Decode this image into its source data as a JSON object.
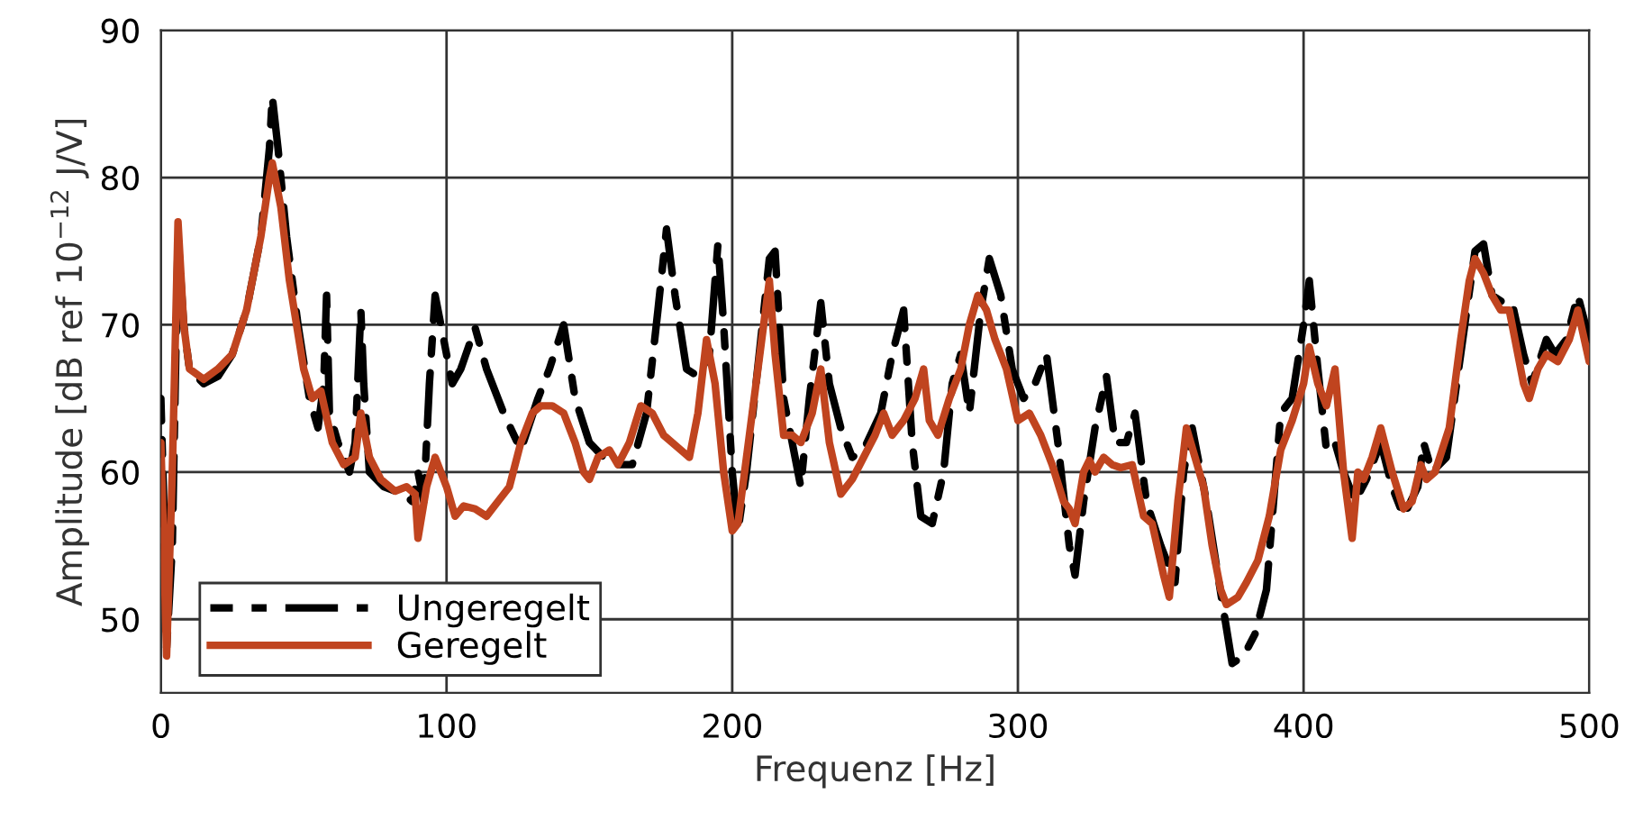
{
  "chart_data": {
    "type": "line",
    "xlabel": "Frequenz [Hz]",
    "ylabel": "Amplitude [dB ref 10$^{−12}$ J/V]",
    "xlim": [
      0,
      500
    ],
    "xticks": [
      0,
      100,
      200,
      300,
      400,
      500
    ],
    "ylim": [
      45,
      90
    ],
    "yticks": [
      50,
      60,
      70,
      80,
      90
    ],
    "grid": true,
    "legend": "bottom left",
    "marker": "none",
    "series": [
      {
        "name": "Ungeregelt",
        "color": "#000000",
        "line_style": "dashed",
        "x": [
          0,
          1,
          2,
          4,
          6,
          8,
          10,
          15,
          20,
          25,
          30,
          35,
          38,
          39,
          41,
          44,
          48,
          52,
          55,
          57,
          58,
          59,
          62,
          66,
          68,
          70,
          71,
          73,
          78,
          85,
          88,
          90,
          92,
          94,
          96,
          98,
          102,
          105,
          110,
          114,
          120,
          126,
          132,
          136,
          141,
          145,
          150,
          155,
          160,
          165,
          170,
          174,
          177,
          180,
          184,
          188,
          192,
          195,
          197,
          200,
          202,
          205,
          210,
          213,
          215,
          218,
          222,
          224,
          227,
          231,
          234,
          238,
          242,
          246,
          252,
          256,
          260,
          263,
          266,
          270,
          274,
          277,
          280,
          283,
          287,
          290,
          294,
          298,
          302,
          306,
          310,
          314,
          318,
          320,
          323,
          327,
          331,
          334,
          338,
          341,
          345,
          350,
          355,
          358,
          361,
          366,
          370,
          375,
          379,
          383,
          387,
          392,
          396,
          400,
          402,
          405,
          408,
          411,
          414,
          418,
          422,
          427,
          431,
          435,
          440,
          442,
          445,
          450,
          455,
          460,
          463,
          466,
          470,
          473,
          477,
          480,
          485,
          488,
          492,
          496,
          500
        ],
        "values": [
          65,
          58,
          48,
          55,
          76,
          70,
          67,
          66,
          66.5,
          68,
          71,
          76,
          82,
          85.5,
          82,
          76,
          70,
          65,
          63,
          66,
          72,
          64,
          62,
          60,
          62,
          71,
          66,
          60,
          59,
          58.5,
          58,
          60,
          58,
          66,
          72,
          70,
          66,
          67,
          69.8,
          67,
          64,
          61.5,
          65,
          67,
          70,
          65,
          62,
          61,
          60.5,
          60.5,
          64,
          71,
          76.5,
          72,
          67,
          66.5,
          68,
          75.5,
          70,
          60,
          56,
          60,
          69,
          74.5,
          75,
          65,
          61,
          59,
          65,
          71.5,
          66,
          63,
          61,
          61.5,
          64,
          68,
          71,
          62,
          57,
          56.5,
          60,
          66,
          68,
          64,
          71,
          74.5,
          72,
          67,
          65,
          66,
          68,
          62,
          55,
          53,
          58,
          63,
          66.5,
          62,
          62,
          64,
          58,
          55,
          52.5,
          60,
          63,
          58,
          53,
          47,
          47.5,
          49,
          52,
          64,
          65,
          70,
          73,
          67,
          61.5,
          62,
          60,
          58,
          59.5,
          62,
          59,
          57,
          59,
          62,
          60,
          61,
          68,
          75,
          75.5,
          72,
          71.5,
          71.5,
          68,
          66,
          69,
          68,
          69,
          72,
          69
        ]
      },
      {
        "name": "Geregelt",
        "color": "#c0441f",
        "line_style": "solid",
        "x": [
          0,
          1,
          2,
          4,
          6,
          8,
          10,
          15,
          20,
          25,
          30,
          35,
          38,
          39,
          42,
          45,
          50,
          53,
          56,
          60,
          64,
          68,
          70,
          73,
          77,
          82,
          86,
          89,
          90,
          93,
          96,
          100,
          103,
          106,
          110,
          114,
          118,
          122,
          126,
          130,
          133,
          137,
          141,
          145,
          148,
          150,
          153,
          157,
          160,
          164,
          168,
          172,
          176,
          182,
          185,
          188,
          191,
          194,
          197,
          200,
          202,
          207,
          211,
          213,
          215,
          218,
          221,
          224,
          228,
          231,
          234,
          238,
          242,
          246,
          250,
          253,
          256,
          260,
          264,
          267,
          269,
          272,
          276,
          280,
          283,
          286,
          289,
          292,
          296,
          300,
          304,
          308,
          312,
          316,
          318,
          320,
          323,
          325,
          327,
          330,
          333,
          336,
          340,
          344,
          347,
          351,
          353,
          356,
          359,
          362,
          365,
          368,
          371,
          373,
          377,
          380,
          384,
          388,
          392,
          396,
          400,
          402,
          405,
          408,
          411,
          414,
          417,
          419,
          421,
          424,
          427,
          431,
          435,
          438,
          441,
          443,
          446,
          451,
          455,
          458,
          460,
          463,
          466,
          469,
          472,
          474,
          477,
          479,
          482,
          485,
          489,
          493,
          496,
          500
        ],
        "values": [
          62,
          55,
          47.5,
          60,
          77,
          70,
          67,
          66.3,
          67,
          68,
          71,
          76,
          80,
          81,
          78,
          73,
          67,
          65,
          65.5,
          62,
          60.5,
          61,
          64,
          61,
          59.5,
          58.7,
          59,
          58.5,
          55.5,
          59,
          61,
          59,
          57,
          57.7,
          57.5,
          57,
          58,
          59,
          62,
          64,
          64.5,
          64.5,
          64,
          62,
          60,
          59.5,
          61,
          61.5,
          60.5,
          62,
          64.5,
          64,
          62.5,
          61.5,
          61,
          64,
          69,
          66,
          60,
          56,
          56.5,
          64,
          70,
          73,
          68,
          62.5,
          62.5,
          62,
          64,
          67,
          62,
          58.5,
          59.5,
          61,
          62.5,
          64,
          62.5,
          63.5,
          65,
          67,
          63.5,
          62.5,
          65,
          67,
          70,
          72,
          71,
          69,
          67,
          63.5,
          64,
          62.5,
          60.5,
          58,
          57.5,
          56.5,
          60,
          60.8,
          60,
          61,
          60.5,
          60.3,
          60.5,
          57,
          56.5,
          53,
          51.5,
          58,
          63,
          61,
          59,
          55,
          52,
          51,
          51.5,
          52.5,
          54,
          57,
          61.5,
          63.5,
          66,
          68.5,
          66,
          64.5,
          67,
          60,
          55.5,
          60,
          59.5,
          61,
          63,
          60,
          57.5,
          58,
          60.5,
          59.5,
          60,
          63,
          69,
          73,
          74.5,
          73.5,
          72,
          71,
          71,
          69,
          66,
          65,
          67,
          68,
          67.5,
          69,
          71,
          67.5
        ]
      }
    ]
  }
}
